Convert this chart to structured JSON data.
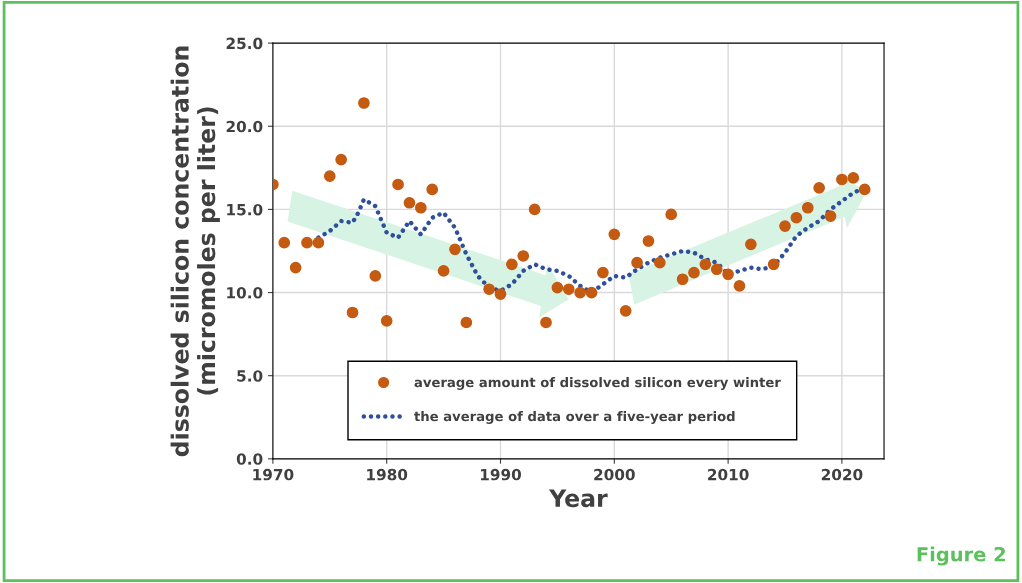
{
  "chart_data": {
    "type": "scatter",
    "xlabel": "Year",
    "ylabel": "dissolved silicon concentration\n(micromoles per liter)",
    "xlim": [
      1970,
      2023.7
    ],
    "xticks": [
      1970,
      1980,
      1990,
      2000,
      2010,
      2020
    ],
    "ylim": [
      0,
      25
    ],
    "yticks": [
      {
        "value": 0,
        "label": "0.0"
      },
      {
        "value": 5,
        "label": "5.0"
      },
      {
        "value": 10,
        "label": "10.0"
      },
      {
        "value": 15,
        "label": "15.0"
      },
      {
        "value": 20,
        "label": "20.0"
      },
      {
        "value": 25,
        "label": "25.0"
      }
    ],
    "grid": true,
    "legend": "bottom",
    "annotations": [
      "Figure 2"
    ],
    "series": [
      {
        "name": "average amount of dissolved silicon every winter",
        "marker": "circle",
        "color": "#c55a11",
        "x": [
          1970,
          1971,
          1972,
          1973,
          1974,
          1975,
          1976,
          1977,
          1978,
          1979,
          1980,
          1981,
          1982,
          1983,
          1984,
          1985,
          1986,
          1987,
          1989,
          1990,
          1991,
          1992,
          1993,
          1994,
          1995,
          1996,
          1997,
          1998,
          1999,
          2000,
          2001,
          2002,
          2003,
          2004,
          2005,
          2006,
          2007,
          2008,
          2009,
          2010,
          2011,
          2012,
          2014,
          2015,
          2016,
          2017,
          2018,
          2019,
          2020,
          2021,
          2022
        ],
        "values": [
          16.5,
          13.0,
          11.5,
          13.0,
          13.0,
          17.0,
          18.0,
          8.8,
          21.4,
          11.0,
          8.3,
          16.5,
          15.4,
          15.1,
          16.2,
          11.3,
          12.6,
          8.2,
          10.2,
          9.9,
          11.7,
          12.2,
          15.0,
          8.2,
          10.3,
          10.2,
          10.0,
          10.0,
          11.2,
          13.5,
          8.9,
          11.8,
          13.1,
          11.8,
          14.7,
          10.8,
          11.2,
          11.7,
          11.4,
          11.1,
          10.4,
          12.9,
          11.7,
          14.0,
          14.5,
          15.1,
          16.3,
          14.6,
          16.8,
          16.9,
          16.2
        ]
      },
      {
        "name": "the average of data over a five-year period",
        "type": "line",
        "line_style": "dotted",
        "color": "#2f4f9a",
        "x": [
          1974,
          1975,
          1976,
          1977,
          1977.5,
          1978,
          1979,
          1980,
          1981,
          1982,
          1983,
          1984,
          1985,
          1986,
          1987,
          1988,
          1989,
          1990,
          1991,
          1992,
          1993,
          1994,
          1995,
          1996,
          1997,
          1998,
          1999,
          2000,
          2001,
          2002,
          2003,
          2004,
          2005,
          2006,
          2007,
          2008,
          2009,
          2010,
          2011,
          2012,
          2013,
          2014,
          2015,
          2016,
          2017,
          2018,
          2019,
          2020,
          2021,
          2022
        ],
        "values": [
          13.3,
          13.7,
          14.3,
          14.2,
          14.8,
          15.6,
          15.2,
          13.6,
          13.3,
          14.3,
          13.5,
          14.5,
          14.8,
          13.9,
          12.3,
          11.0,
          10.3,
          10.1,
          10.5,
          11.3,
          11.7,
          11.4,
          11.3,
          11.0,
          10.4,
          10.0,
          10.5,
          11.0,
          10.9,
          11.4,
          11.8,
          12.1,
          12.3,
          12.5,
          12.4,
          12.0,
          11.8,
          11.1,
          11.3,
          11.5,
          11.4,
          11.6,
          12.4,
          13.4,
          13.9,
          14.3,
          15.0,
          15.5,
          16.0,
          16.3
        ]
      }
    ]
  }
}
